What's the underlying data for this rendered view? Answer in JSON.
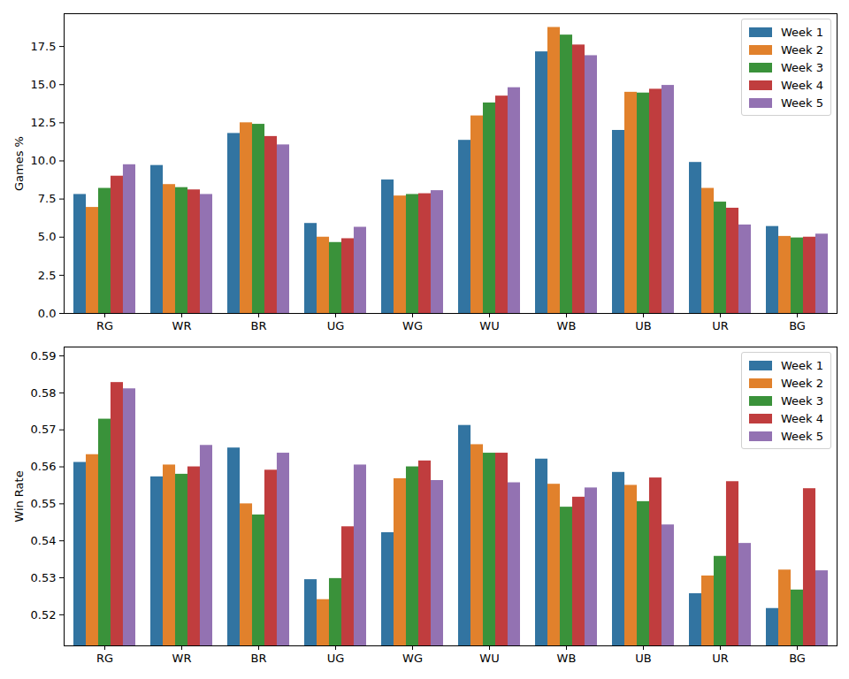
{
  "chart_data": [
    {
      "type": "bar",
      "y_label": "Games %",
      "categories": [
        "RG",
        "WR",
        "BR",
        "UG",
        "WG",
        "WU",
        "WB",
        "UB",
        "UR",
        "BG"
      ],
      "series": [
        {
          "name": "Week 1",
          "color": "#3274a1",
          "values": [
            7.8,
            9.7,
            11.8,
            5.9,
            8.75,
            11.35,
            17.15,
            12.0,
            9.9,
            5.7
          ]
        },
        {
          "name": "Week 2",
          "color": "#e1812c",
          "values": [
            6.95,
            8.45,
            12.5,
            5.0,
            7.7,
            12.95,
            18.75,
            14.5,
            8.2,
            5.05
          ]
        },
        {
          "name": "Week 3",
          "color": "#3a923a",
          "values": [
            8.2,
            8.25,
            12.4,
            4.65,
            7.8,
            13.8,
            18.25,
            14.45,
            7.3,
            4.95
          ]
        },
        {
          "name": "Week 4",
          "color": "#c03d3e",
          "values": [
            9.0,
            8.1,
            11.6,
            4.9,
            7.85,
            14.25,
            17.6,
            14.7,
            6.9,
            5.0
          ]
        },
        {
          "name": "Week 5",
          "color": "#9372b2",
          "values": [
            9.75,
            7.8,
            11.05,
            5.65,
            8.05,
            14.8,
            16.9,
            14.95,
            5.8,
            5.2
          ]
        }
      ],
      "ylim": [
        0,
        19.65
      ],
      "yticks": [
        {
          "value": 0,
          "label": "0.0"
        },
        2.5,
        {
          "value": 5,
          "label": "5.0"
        },
        7.5,
        {
          "value": 10,
          "label": "10.0"
        },
        12.5,
        {
          "value": 15,
          "label": "15.0"
        },
        17.5
      ],
      "grid": false,
      "legend": "upper right"
    },
    {
      "type": "bar",
      "y_label": "Win Rate",
      "categories": [
        "RG",
        "WR",
        "BR",
        "UG",
        "WG",
        "WU",
        "WB",
        "UB",
        "UR",
        "BG"
      ],
      "series": [
        {
          "name": "Week 1",
          "color": "#3274a1",
          "values": [
            0.5612,
            0.5573,
            0.5651,
            0.5295,
            0.5422,
            0.5712,
            0.5621,
            0.5585,
            0.5257,
            0.5217
          ]
        },
        {
          "name": "Week 2",
          "color": "#e1812c",
          "values": [
            0.5633,
            0.5605,
            0.55,
            0.5241,
            0.5568,
            0.566,
            0.5553,
            0.555,
            0.5305,
            0.5321
          ]
        },
        {
          "name": "Week 3",
          "color": "#3a923a",
          "values": [
            0.5729,
            0.558,
            0.547,
            0.5298,
            0.56,
            0.5637,
            0.5491,
            0.5506,
            0.5358,
            0.5267
          ]
        },
        {
          "name": "Week 4",
          "color": "#c03d3e",
          "values": [
            0.5828,
            0.56,
            0.5591,
            0.5438,
            0.5616,
            0.5637,
            0.5518,
            0.557,
            0.556,
            0.5541
          ]
        },
        {
          "name": "Week 5",
          "color": "#9372b2",
          "values": [
            0.5811,
            0.5658,
            0.5637,
            0.5605,
            0.5563,
            0.5557,
            0.5543,
            0.5443,
            0.5393,
            0.5319
          ]
        }
      ],
      "ylim": [
        0.5116,
        0.5924
      ],
      "yticks": [
        0.52,
        0.53,
        0.54,
        0.55,
        0.56,
        0.57,
        0.58,
        0.59
      ],
      "grid": false,
      "legend": "upper right"
    }
  ]
}
